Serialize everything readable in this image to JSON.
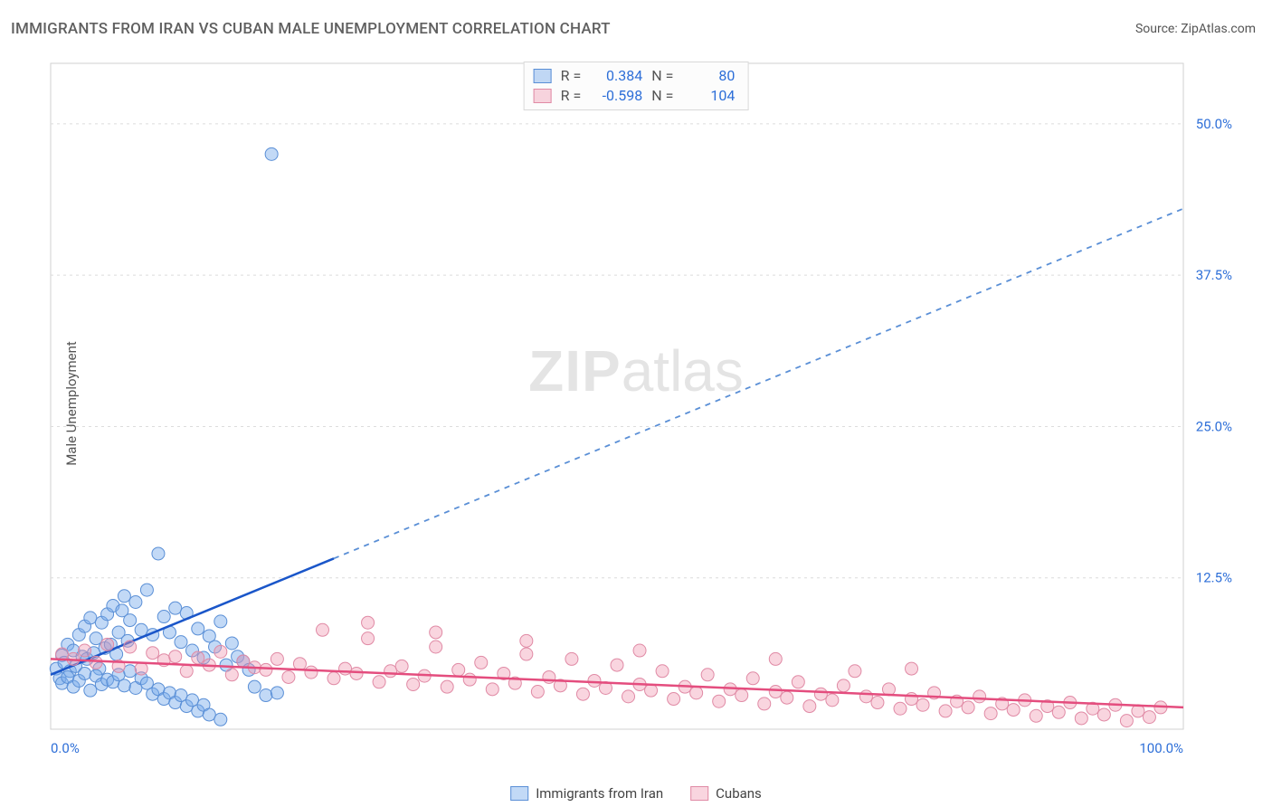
{
  "title": "IMMIGRANTS FROM IRAN VS CUBAN MALE UNEMPLOYMENT CORRELATION CHART",
  "source_label": "Source: ",
  "source_value": "ZipAtlas.com",
  "y_axis_label": "Male Unemployment",
  "watermark_zip": "ZIP",
  "watermark_atlas": "atlas",
  "chart": {
    "type": "scatter-with-regression",
    "background_color": "#ffffff",
    "grid_color": "#dcdcdc",
    "axis_line_color": "#d0d0d0",
    "x_range": [
      0,
      100
    ],
    "y_range": [
      0,
      55
    ],
    "x_ticks": [
      {
        "v": 0,
        "label": "0.0%"
      },
      {
        "v": 100,
        "label": "100.0%"
      }
    ],
    "x_tick_color": "#2e6fd8",
    "y_ticks": [
      {
        "v": 12.5,
        "label": "12.5%"
      },
      {
        "v": 25.0,
        "label": "25.0%"
      },
      {
        "v": 37.5,
        "label": "37.5%"
      },
      {
        "v": 50.0,
        "label": "50.0%"
      }
    ],
    "y_tick_color": "#2e6fd8",
    "y_grid_values": [
      12.5,
      25.0,
      37.5,
      50.0
    ],
    "series": [
      {
        "id": "iran",
        "label": "Immigrants from Iran",
        "marker_color_fill": "rgba(120,170,235,0.45)",
        "marker_color_stroke": "#5a8fd6",
        "marker_radius": 7,
        "reg_solid_color": "#1a56c9",
        "reg_dash_color": "#5a8fd6",
        "reg_solid": {
          "x1": 0,
          "y1": 4.5,
          "x2": 25,
          "y2": 14.1
        },
        "reg_dash": {
          "x1": 25,
          "y1": 14.1,
          "x2": 100,
          "y2": 43.0
        },
        "R_label": "R =",
        "R_value": "0.384",
        "N_label": "N =",
        "N_value": "80",
        "stats_value_color": "#2e6fd8",
        "points": [
          [
            0.5,
            5.0
          ],
          [
            0.8,
            4.2
          ],
          [
            1.0,
            6.1
          ],
          [
            1.2,
            5.5
          ],
          [
            1.5,
            7.0
          ],
          [
            1.7,
            4.8
          ],
          [
            2.0,
            6.5
          ],
          [
            2.2,
            5.2
          ],
          [
            2.5,
            7.8
          ],
          [
            2.8,
            6.0
          ],
          [
            3.0,
            8.5
          ],
          [
            3.2,
            5.8
          ],
          [
            3.5,
            9.2
          ],
          [
            3.8,
            6.3
          ],
          [
            4.0,
            7.5
          ],
          [
            4.3,
            5.0
          ],
          [
            4.5,
            8.8
          ],
          [
            4.8,
            6.7
          ],
          [
            5.0,
            9.5
          ],
          [
            5.3,
            7.0
          ],
          [
            5.5,
            10.2
          ],
          [
            5.8,
            6.2
          ],
          [
            6.0,
            8.0
          ],
          [
            6.3,
            9.8
          ],
          [
            6.5,
            11.0
          ],
          [
            6.8,
            7.3
          ],
          [
            7.0,
            9.0
          ],
          [
            7.5,
            10.5
          ],
          [
            8.0,
            8.2
          ],
          [
            8.5,
            11.5
          ],
          [
            9.0,
            7.8
          ],
          [
            9.5,
            14.5
          ],
          [
            10.0,
            9.3
          ],
          [
            10.5,
            8.0
          ],
          [
            11.0,
            10.0
          ],
          [
            11.5,
            7.2
          ],
          [
            12.0,
            9.6
          ],
          [
            12.5,
            6.5
          ],
          [
            13.0,
            8.3
          ],
          [
            13.5,
            5.9
          ],
          [
            14.0,
            7.7
          ],
          [
            14.5,
            6.8
          ],
          [
            15.0,
            8.9
          ],
          [
            15.5,
            5.3
          ],
          [
            16.0,
            7.1
          ],
          [
            16.5,
            6.0
          ],
          [
            17.0,
            5.6
          ],
          [
            17.5,
            4.9
          ],
          [
            1.0,
            3.8
          ],
          [
            1.5,
            4.3
          ],
          [
            2.0,
            3.5
          ],
          [
            2.5,
            4.0
          ],
          [
            3.0,
            4.6
          ],
          [
            3.5,
            3.2
          ],
          [
            4.0,
            4.4
          ],
          [
            4.5,
            3.7
          ],
          [
            5.0,
            4.1
          ],
          [
            5.5,
            3.9
          ],
          [
            6.0,
            4.5
          ],
          [
            6.5,
            3.6
          ],
          [
            7.0,
            4.8
          ],
          [
            7.5,
            3.4
          ],
          [
            8.0,
            4.2
          ],
          [
            8.5,
            3.8
          ],
          [
            9.0,
            2.9
          ],
          [
            9.5,
            3.3
          ],
          [
            10.0,
            2.5
          ],
          [
            10.5,
            3.0
          ],
          [
            11.0,
            2.2
          ],
          [
            11.5,
            2.8
          ],
          [
            12.0,
            1.9
          ],
          [
            12.5,
            2.4
          ],
          [
            13.0,
            1.5
          ],
          [
            13.5,
            2.0
          ],
          [
            14.0,
            1.2
          ],
          [
            15.0,
            0.8
          ],
          [
            18.0,
            3.5
          ],
          [
            19.0,
            2.8
          ],
          [
            20.0,
            3.0
          ],
          [
            19.5,
            47.5
          ]
        ]
      },
      {
        "id": "cubans",
        "label": "Cubans",
        "marker_color_fill": "rgba(240,150,175,0.40)",
        "marker_color_stroke": "#e08aa5",
        "marker_radius": 7,
        "reg_solid_color": "#e44d7e",
        "reg_dash_color": "#e89ab3",
        "reg_solid": {
          "x1": 0,
          "y1": 5.8,
          "x2": 100,
          "y2": 1.8
        },
        "R_label": "R =",
        "R_value": "-0.598",
        "N_label": "N =",
        "N_value": "104",
        "stats_value_color": "#2e6fd8",
        "points": [
          [
            1,
            6.2
          ],
          [
            2,
            5.8
          ],
          [
            3,
            6.5
          ],
          [
            4,
            5.5
          ],
          [
            5,
            7.0
          ],
          [
            6,
            5.2
          ],
          [
            7,
            6.8
          ],
          [
            8,
            5.0
          ],
          [
            9,
            6.3
          ],
          [
            10,
            5.7
          ],
          [
            11,
            6.0
          ],
          [
            12,
            4.8
          ],
          [
            13,
            5.9
          ],
          [
            14,
            5.3
          ],
          [
            15,
            6.4
          ],
          [
            16,
            4.5
          ],
          [
            17,
            5.6
          ],
          [
            18,
            5.1
          ],
          [
            19,
            4.9
          ],
          [
            20,
            5.8
          ],
          [
            21,
            4.3
          ],
          [
            22,
            5.4
          ],
          [
            23,
            4.7
          ],
          [
            24,
            8.2
          ],
          [
            25,
            4.2
          ],
          [
            26,
            5.0
          ],
          [
            27,
            4.6
          ],
          [
            28,
            7.5
          ],
          [
            29,
            3.9
          ],
          [
            30,
            4.8
          ],
          [
            31,
            5.2
          ],
          [
            32,
            3.7
          ],
          [
            33,
            4.4
          ],
          [
            34,
            6.8
          ],
          [
            35,
            3.5
          ],
          [
            36,
            4.9
          ],
          [
            37,
            4.1
          ],
          [
            38,
            5.5
          ],
          [
            39,
            3.3
          ],
          [
            40,
            4.6
          ],
          [
            41,
            3.8
          ],
          [
            42,
            6.2
          ],
          [
            43,
            3.1
          ],
          [
            44,
            4.3
          ],
          [
            45,
            3.6
          ],
          [
            46,
            5.8
          ],
          [
            47,
            2.9
          ],
          [
            48,
            4.0
          ],
          [
            49,
            3.4
          ],
          [
            50,
            5.3
          ],
          [
            51,
            2.7
          ],
          [
            52,
            3.7
          ],
          [
            53,
            3.2
          ],
          [
            54,
            4.8
          ],
          [
            55,
            2.5
          ],
          [
            56,
            3.5
          ],
          [
            57,
            3.0
          ],
          [
            58,
            4.5
          ],
          [
            59,
            2.3
          ],
          [
            60,
            3.3
          ],
          [
            61,
            2.8
          ],
          [
            62,
            4.2
          ],
          [
            63,
            2.1
          ],
          [
            64,
            3.1
          ],
          [
            65,
            2.6
          ],
          [
            66,
            3.9
          ],
          [
            67,
            1.9
          ],
          [
            68,
            2.9
          ],
          [
            69,
            2.4
          ],
          [
            70,
            3.6
          ],
          [
            71,
            4.8
          ],
          [
            72,
            2.7
          ],
          [
            73,
            2.2
          ],
          [
            74,
            3.3
          ],
          [
            75,
            1.7
          ],
          [
            76,
            2.5
          ],
          [
            77,
            2.0
          ],
          [
            78,
            3.0
          ],
          [
            79,
            1.5
          ],
          [
            80,
            2.3
          ],
          [
            81,
            1.8
          ],
          [
            82,
            2.7
          ],
          [
            83,
            1.3
          ],
          [
            84,
            2.1
          ],
          [
            85,
            1.6
          ],
          [
            86,
            2.4
          ],
          [
            87,
            1.1
          ],
          [
            88,
            1.9
          ],
          [
            89,
            1.4
          ],
          [
            90,
            2.2
          ],
          [
            91,
            0.9
          ],
          [
            92,
            1.7
          ],
          [
            93,
            1.2
          ],
          [
            94,
            2.0
          ],
          [
            95,
            0.7
          ],
          [
            96,
            1.5
          ],
          [
            97,
            1.0
          ],
          [
            98,
            1.8
          ],
          [
            28,
            8.8
          ],
          [
            34,
            8.0
          ],
          [
            42,
            7.3
          ],
          [
            52,
            6.5
          ],
          [
            64,
            5.8
          ],
          [
            76,
            5.0
          ]
        ]
      }
    ]
  },
  "legend": {
    "iran": "Immigrants from Iran",
    "cubans": "Cubans"
  }
}
